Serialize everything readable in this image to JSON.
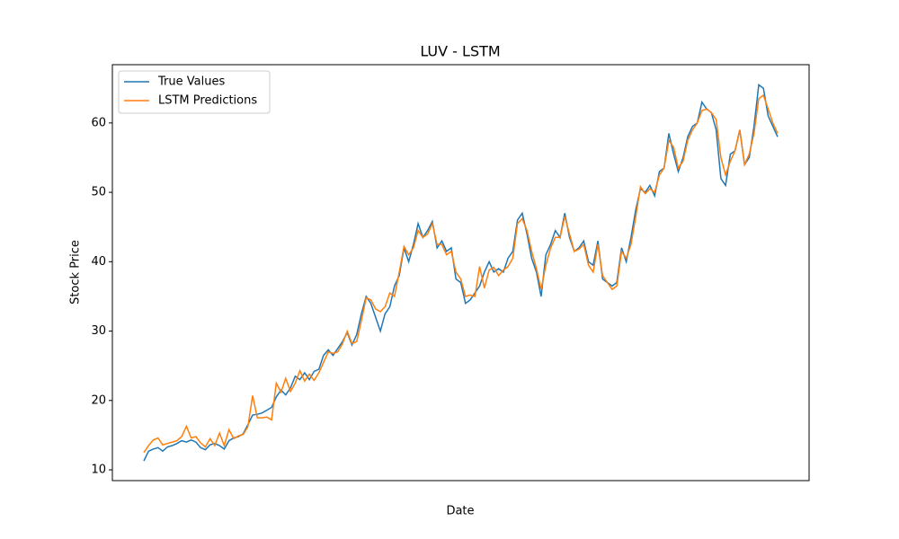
{
  "chart_data": {
    "type": "line",
    "title": "LUV - LSTM",
    "x_label": "Date",
    "y_label": "Stock Price",
    "ylim": [
      8.45,
      68.4
    ],
    "yticks": [
      10,
      20,
      30,
      40,
      50,
      60
    ],
    "legend": "upper left",
    "series": [
      {
        "name": "True Values",
        "color": "#1f77b4",
        "values": [
          11.3,
          12.7,
          13.0,
          13.2,
          12.7,
          13.3,
          13.5,
          13.8,
          14.2,
          14.0,
          14.3,
          14.0,
          13.2,
          12.9,
          13.6,
          13.8,
          13.5,
          13.0,
          14.2,
          14.6,
          14.8,
          15.2,
          16.5,
          17.9,
          18.0,
          18.2,
          18.6,
          19.0,
          20.5,
          21.5,
          20.8,
          21.8,
          23.5,
          23.0,
          24.0,
          23.0,
          24.2,
          24.5,
          26.5,
          27.3,
          26.5,
          27.5,
          28.5,
          29.8,
          28.0,
          29.5,
          32.5,
          35.0,
          34.0,
          32.0,
          30.0,
          32.5,
          33.5,
          36.5,
          38.0,
          42.0,
          40.0,
          42.5,
          45.5,
          43.5,
          44.5,
          45.8,
          42.0,
          43.0,
          41.5,
          42.0,
          37.5,
          37.0,
          34.0,
          34.5,
          35.5,
          36.5,
          38.5,
          40.0,
          38.5,
          39.0,
          38.5,
          40.5,
          41.5,
          46.0,
          47.0,
          44.0,
          40.5,
          38.5,
          35.0,
          41.0,
          42.5,
          44.5,
          43.5,
          47.0,
          43.5,
          41.5,
          42.0,
          43.0,
          40.0,
          39.5,
          43.0,
          37.5,
          37.0,
          36.5,
          37.0,
          42.0,
          40.0,
          43.5,
          47.5,
          50.5,
          50.0,
          51.0,
          49.5,
          53.0,
          53.5,
          58.5,
          55.5,
          53.0,
          55.0,
          58.0,
          59.5,
          60.0,
          63.0,
          62.0,
          61.5,
          59.0,
          52.0,
          51.0,
          55.5,
          56.0,
          59.0,
          54.0,
          55.0,
          59.5,
          65.5,
          65.0,
          61.0,
          59.5,
          58.0
        ]
      },
      {
        "name": "LSTM Predictions",
        "color": "#ff7f0e",
        "values": [
          12.5,
          13.5,
          14.3,
          14.6,
          13.6,
          13.8,
          14.0,
          14.2,
          14.8,
          16.3,
          14.6,
          14.8,
          13.9,
          13.3,
          14.5,
          13.5,
          15.3,
          13.5,
          15.8,
          14.5,
          14.9,
          15.1,
          16.2,
          20.7,
          17.5,
          17.5,
          17.6,
          17.2,
          22.5,
          21.2,
          23.2,
          21.3,
          22.5,
          24.3,
          22.8,
          23.8,
          22.9,
          24.0,
          25.5,
          27.0,
          26.8,
          27.0,
          28.2,
          30.0,
          28.2,
          28.5,
          31.5,
          34.8,
          34.5,
          33.2,
          32.8,
          33.5,
          35.5,
          35.0,
          38.5,
          42.2,
          41.0,
          42.0,
          44.5,
          43.5,
          44.0,
          45.5,
          42.5,
          42.5,
          41.0,
          41.5,
          38.5,
          37.5,
          35.0,
          35.2,
          35.0,
          39.3,
          36.2,
          38.8,
          39.2,
          38.0,
          38.8,
          39.3,
          40.5,
          45.5,
          46.2,
          44.5,
          41.5,
          39.0,
          36.0,
          39.5,
          42.0,
          43.5,
          43.5,
          46.5,
          44.0,
          41.5,
          41.8,
          42.5,
          39.5,
          38.5,
          42.5,
          38.0,
          37.0,
          36.0,
          36.5,
          41.5,
          40.5,
          42.5,
          46.5,
          50.8,
          49.8,
          50.5,
          50.0,
          52.5,
          53.5,
          57.5,
          56.5,
          53.5,
          54.5,
          57.5,
          59.0,
          60.0,
          61.8,
          62.0,
          61.5,
          60.5,
          55.0,
          52.5,
          54.5,
          56.0,
          59.0,
          54.0,
          55.5,
          58.5,
          63.5,
          64.0,
          62.0,
          60.0,
          58.5
        ]
      }
    ]
  }
}
